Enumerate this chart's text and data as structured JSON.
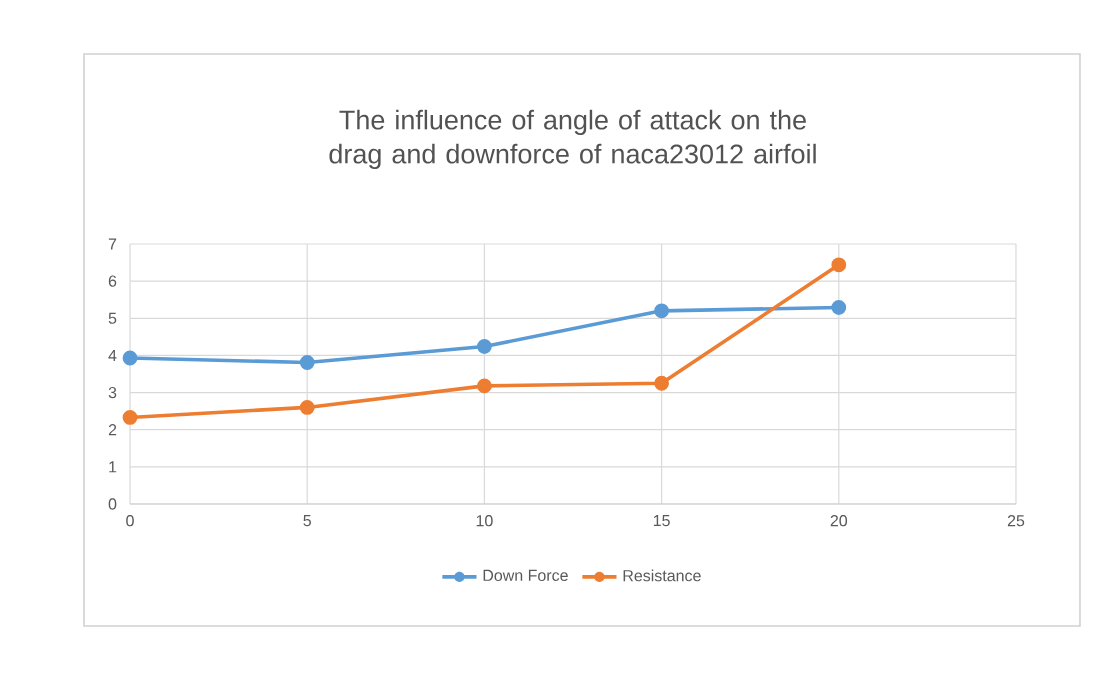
{
  "chart_data": {
    "type": "line",
    "title": "The influence of angle of attack on the drag and downforce of naca23012 airfoil",
    "x": [
      0,
      5,
      10,
      15,
      20
    ],
    "series": [
      {
        "name": "Down Force",
        "color": "#5b9bd5",
        "values": [
          3.93,
          3.81,
          4.24,
          5.2,
          5.29
        ]
      },
      {
        "name": "Resistance",
        "color": "#ed7d31",
        "values": [
          2.33,
          2.6,
          3.18,
          3.25,
          6.44
        ]
      }
    ],
    "xlim": [
      0,
      25
    ],
    "xticks": [
      0,
      5,
      10,
      15,
      20,
      25
    ],
    "ylim": [
      0,
      7
    ],
    "yticks": [
      0,
      1,
      2,
      3,
      4,
      5,
      6,
      7
    ],
    "grid": true,
    "legend": "bottom",
    "marker": "circle",
    "line_style": "solid"
  }
}
